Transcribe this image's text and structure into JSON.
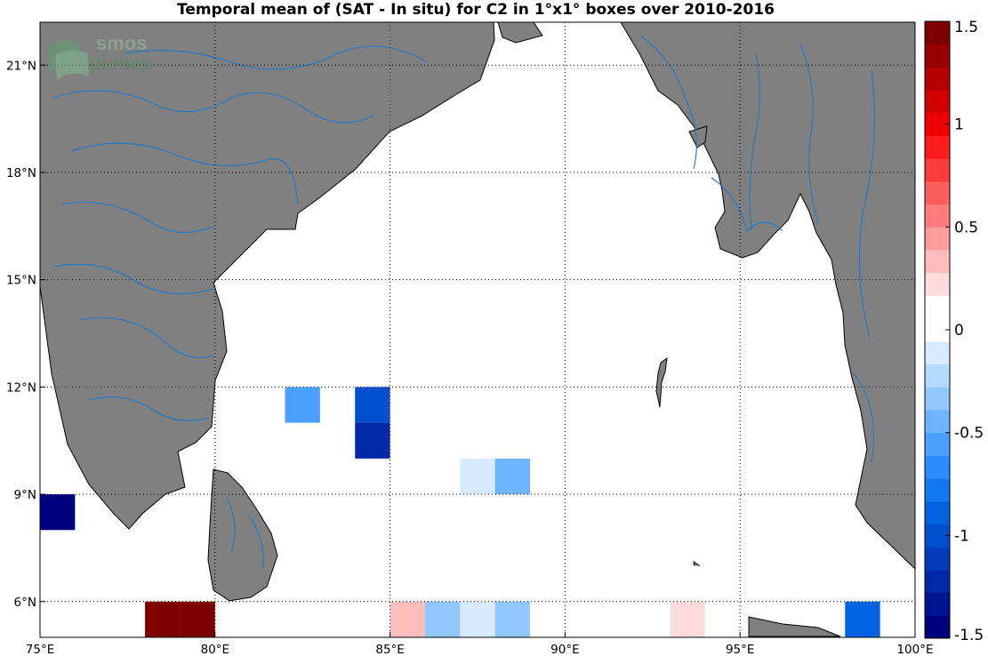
{
  "title": "Temporal mean of (SAT - In situ) for C2 in 1°x1° boxes over 2010-2016",
  "logo": {
    "line1": "smos",
    "line2": "pi-mep"
  },
  "map": {
    "lon_range": [
      75,
      100
    ],
    "lat_range": [
      5,
      22.2
    ],
    "grid": true,
    "x_ticks": [
      {
        "value": 75,
        "label": "75°E"
      },
      {
        "value": 80,
        "label": "80°E"
      },
      {
        "value": 85,
        "label": "85°E"
      },
      {
        "value": 90,
        "label": "90°E"
      },
      {
        "value": 95,
        "label": "95°E"
      },
      {
        "value": 100,
        "label": "100°E"
      }
    ],
    "y_ticks": [
      {
        "value": 6,
        "label": "6°N"
      },
      {
        "value": 9,
        "label": "9°N"
      },
      {
        "value": 12,
        "label": "12°N"
      },
      {
        "value": 15,
        "label": "15°N"
      },
      {
        "value": 18,
        "label": "18°N"
      },
      {
        "value": 21,
        "label": "21°N"
      }
    ],
    "land_color": "#808080",
    "river_color": "#1e78c8"
  },
  "colorbar": {
    "range": [
      -1.5,
      1.5
    ],
    "ticks": [
      {
        "value": 1.5,
        "label": "1.5"
      },
      {
        "value": 1,
        "label": "1"
      },
      {
        "value": 0.5,
        "label": "0.5"
      },
      {
        "value": 0,
        "label": "0"
      },
      {
        "value": -0.5,
        "label": "-0.5"
      },
      {
        "value": -1,
        "label": "-1"
      },
      {
        "value": -1.5,
        "label": "-1.5"
      }
    ],
    "colors_bottom_to_top": [
      "#00007f",
      "#001492",
      "#0028a6",
      "#003cb9",
      "#0050cd",
      "#0064e0",
      "#1478f0",
      "#2a8cff",
      "#4ba0ff",
      "#6eb4ff",
      "#91c8ff",
      "#b4d8ff",
      "#d7eaff",
      "#ffffff",
      "#ffffff",
      "#ffdcdc",
      "#ffbcbc",
      "#ff9c9c",
      "#ff7c7c",
      "#ff5c5c",
      "#ff3c3c",
      "#ff1c1c",
      "#f00000",
      "#d20000",
      "#b40000",
      "#960000",
      "#7f0000"
    ]
  },
  "chart_data": {
    "type": "heatmap",
    "title": "Temporal mean of (SAT - In situ) for C2 in 1°x1° boxes over 2010-2016",
    "xlabel": "",
    "ylabel": "",
    "xlim": [
      75,
      100
    ],
    "ylim": [
      5,
      22.2
    ],
    "cell_size_deg": 1,
    "cells": [
      {
        "lon": 75.5,
        "lat": 8.5,
        "value": -1.45
      },
      {
        "lon": 82.5,
        "lat": 11.5,
        "value": -0.6
      },
      {
        "lon": 84.5,
        "lat": 11.5,
        "value": -0.95
      },
      {
        "lon": 84.5,
        "lat": 10.5,
        "value": -1.25
      },
      {
        "lon": 87.5,
        "lat": 9.5,
        "value": -0.12
      },
      {
        "lon": 88.5,
        "lat": 9.5,
        "value": -0.5
      },
      {
        "lon": 78.5,
        "lat": 5.5,
        "value": 1.5
      },
      {
        "lon": 79.5,
        "lat": 5.5,
        "value": 1.5
      },
      {
        "lon": 85.5,
        "lat": 5.5,
        "value": 0.35
      },
      {
        "lon": 86.5,
        "lat": 5.5,
        "value": -0.3
      },
      {
        "lon": 87.5,
        "lat": 5.5,
        "value": -0.12
      },
      {
        "lon": 88.5,
        "lat": 5.5,
        "value": -0.3
      },
      {
        "lon": 93.5,
        "lat": 6.5,
        "value": 0.1
      },
      {
        "lon": 93.5,
        "lat": 5.5,
        "value": 0.2
      },
      {
        "lon": 94.5,
        "lat": 5.5,
        "value": 0.1
      },
      {
        "lon": 98.5,
        "lat": 5.5,
        "value": -0.9
      }
    ],
    "colorbar_range": [
      -1.5,
      1.5
    ]
  }
}
